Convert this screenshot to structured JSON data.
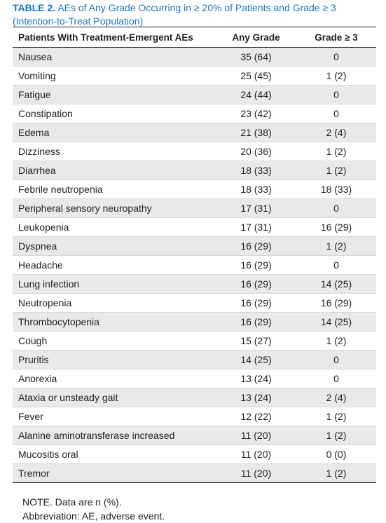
{
  "caption": {
    "label": "TABLE 2.",
    "title": "AEs of Any Grade Occurring in ≥ 20% of Patients and Grade ≥ 3 (Intention-to-Treat Population)"
  },
  "columns": [
    "Patients With Treatment-Emergent AEs",
    "Any Grade",
    "Grade ≥ 3"
  ],
  "rows": [
    [
      "Nausea",
      "35 (64)",
      "0"
    ],
    [
      "Vomiting",
      "25 (45)",
      "1 (2)"
    ],
    [
      "Fatigue",
      "24 (44)",
      "0"
    ],
    [
      "Constipation",
      "23 (42)",
      "0"
    ],
    [
      "Edema",
      "21 (38)",
      "2 (4)"
    ],
    [
      "Dizziness",
      "20 (36)",
      "1 (2)"
    ],
    [
      "Diarrhea",
      "18 (33)",
      "1 (2)"
    ],
    [
      "Febrile neutropenia",
      "18 (33)",
      "18 (33)"
    ],
    [
      "Peripheral sensory neuropathy",
      "17 (31)",
      "0"
    ],
    [
      "Leukopenia",
      "17 (31)",
      "16 (29)"
    ],
    [
      "Dyspnea",
      "16 (29)",
      "1 (2)"
    ],
    [
      "Headache",
      "16 (29)",
      "0"
    ],
    [
      "Lung infection",
      "16 (29)",
      "14 (25)"
    ],
    [
      "Neutropenia",
      "16 (29)",
      "16 (29)"
    ],
    [
      "Thrombocytopenia",
      "16 (29)",
      "14 (25)"
    ],
    [
      "Cough",
      "15 (27)",
      "1 (2)"
    ],
    [
      "Pruritis",
      "14 (25)",
      "0"
    ],
    [
      "Anorexia",
      "13 (24)",
      "0"
    ],
    [
      "Ataxia or unsteady gait",
      "13 (24)",
      "2 (4)"
    ],
    [
      "Fever",
      "12 (22)",
      "1 (2)"
    ],
    [
      "Alanine aminotransferase increased",
      "11 (20)",
      "1 (2)"
    ],
    [
      "Mucositis oral",
      "11 (20)",
      "0 (0)"
    ],
    [
      "Tremor",
      "11 (20)",
      "1 (2)"
    ]
  ],
  "notes": [
    "NOTE. Data are n (%).",
    "Abbreviation: AE, adverse event."
  ],
  "colors": {
    "caption_accent": "#1c75bc",
    "row_shade": "#e8e9ea"
  }
}
